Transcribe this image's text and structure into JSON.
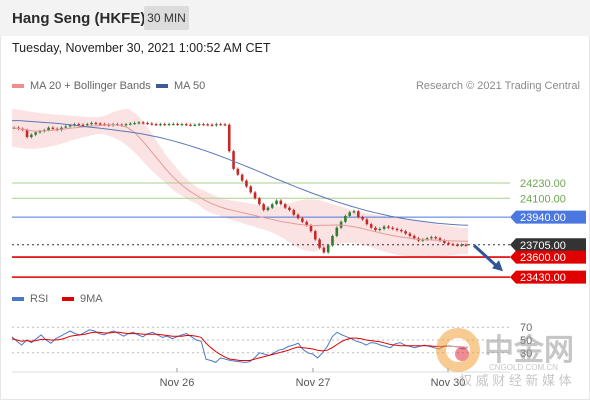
{
  "header": {
    "title": "Hang Seng (HKFE)",
    "timeframe": "30 MIN"
  },
  "datetime": "Tuesday, November 30, 2021 1:00:52 AM CET",
  "legend": {
    "items": [
      {
        "label": "MA 20 + Bollinger Bands",
        "color": "#f08c8c"
      },
      {
        "label": "MA 50",
        "color": "#3d5a99"
      }
    ],
    "credit": "Research © 2021 Trading Central"
  },
  "rsi_legend": {
    "items": [
      {
        "label": "RSI",
        "color": "#4a78c8"
      },
      {
        "label": "9MA",
        "color": "#e00000"
      }
    ]
  },
  "colors": {
    "bollinger_fill": "#fbe0e0",
    "ma50": "#5a78b8",
    "ma20": "#e69a9a",
    "resistance_green": "#a9d18e",
    "pivot_blue": "#4a78e0",
    "support_red": "#e00000",
    "current": "#333333",
    "candle_up": "#2e7d32",
    "candle_down": "#c62828",
    "arrow": "#2f5597"
  },
  "watermark": {
    "cn_name": "中金网",
    "cn_slogan": "权 威 财 经 新 媒 体",
    "domain": "CNGOLD.COM.CN"
  },
  "chart_data": [
    {
      "type": "candlestick",
      "x_labels": [
        "Nov 26",
        "Nov 27",
        "Nov 30"
      ],
      "ylim": [
        23380,
        24850
      ],
      "levels": [
        {
          "label": "24230.00",
          "value": 24230,
          "kind": "resistance"
        },
        {
          "label": "24100.00",
          "value": 24100,
          "kind": "resistance"
        },
        {
          "label": "23940.00",
          "value": 23940,
          "kind": "pivot"
        },
        {
          "label": "23705.00",
          "value": 23705,
          "kind": "current"
        },
        {
          "label": "23600.00",
          "value": 23600,
          "kind": "support"
        },
        {
          "label": "23430.00",
          "value": 23430,
          "kind": "support"
        }
      ],
      "close_series": [
        24700,
        24690,
        24680,
        24620,
        24640,
        24660,
        24670,
        24680,
        24700,
        24690,
        24680,
        24700,
        24710,
        24720,
        24730,
        24725,
        24720,
        24730,
        24740,
        24735,
        24730,
        24725,
        24720,
        24730,
        24725,
        24720,
        24730,
        24735,
        24740,
        24745,
        24740,
        24735,
        24730,
        24725,
        24730,
        24728,
        24730,
        24732,
        24728,
        24730,
        24725,
        24722,
        24725,
        24730,
        24728,
        24725,
        24720,
        24730,
        24728,
        24725,
        24500,
        24350,
        24300,
        24250,
        24200,
        24150,
        24100,
        24050,
        24000,
        24020,
        24050,
        24080,
        24050,
        24020,
        24000,
        23960,
        23930,
        23900,
        23870,
        23820,
        23750,
        23680,
        23640,
        23700,
        23780,
        23850,
        23900,
        23950,
        23980,
        23990,
        23940,
        23920,
        23880,
        23850,
        23830,
        23840,
        23860,
        23850,
        23840,
        23830,
        23820,
        23800,
        23780,
        23760,
        23740,
        23750,
        23760,
        23770,
        23760,
        23740,
        23720,
        23710,
        23705,
        23700,
        23705,
        23700
      ],
      "ma50": [
        24760,
        24760,
        24755,
        24750,
        24745,
        24740,
        24735,
        24728,
        24720,
        24712,
        24705,
        24698,
        24690,
        24682,
        24674,
        24665,
        24655,
        24645,
        24632,
        24618,
        24602,
        24585,
        24566,
        24547,
        24526,
        24504,
        24481,
        24457,
        24432,
        24406,
        24380,
        24353,
        24326,
        24298,
        24270,
        24243,
        24216,
        24190,
        24165,
        24140,
        24116,
        24093,
        24071,
        24050,
        24030,
        24011,
        23993,
        23977,
        23962,
        23948,
        23936,
        23924,
        23914,
        23904,
        23896,
        23888,
        23882,
        23877,
        23873,
        23870
      ],
      "ma20": [
        24700,
        24690,
        24680,
        24670,
        24672,
        24677,
        24683,
        24690,
        24698,
        24705,
        24712,
        24717,
        24722,
        24724,
        24720,
        24700,
        24650,
        24580,
        24500,
        24420,
        24340,
        24270,
        24210,
        24160,
        24120,
        24080,
        24050,
        24025,
        24005,
        23990,
        23975,
        23960,
        23945,
        23930,
        23915,
        23900,
        23890,
        23880,
        23872,
        23868,
        23870,
        23872,
        23873,
        23870,
        23860,
        23848,
        23832,
        23816,
        23800,
        23786,
        23774,
        23764,
        23756,
        23750,
        23746,
        23743,
        23740,
        23738,
        23736,
        23735
      ],
      "boll_upper": [
        24860,
        24852,
        24840,
        24830,
        24822,
        24815,
        24810,
        24805,
        24800,
        24795,
        24790,
        24788,
        24800,
        24830,
        24850,
        24860,
        24820,
        24750,
        24660,
        24560,
        24460,
        24380,
        24300,
        24240,
        24190,
        24160,
        24130,
        24100,
        24085,
        24075,
        24065,
        24055,
        24045,
        24035,
        24030,
        24035,
        24060,
        24080,
        24090,
        24090,
        24080,
        24060,
        24040,
        24020,
        24000,
        23985,
        23972,
        23960,
        23950,
        23940,
        23930,
        23920,
        23910,
        23900,
        23890,
        23880,
        23870,
        23860,
        23850,
        23845
      ],
      "boll_lower": [
        24540,
        24528,
        24520,
        24520,
        24528,
        24540,
        24556,
        24575,
        24596,
        24614,
        24630,
        24646,
        24644,
        24618,
        24590,
        24540,
        24480,
        24410,
        24340,
        24280,
        24220,
        24160,
        24120,
        24080,
        24050,
        24000,
        23970,
        23950,
        23925,
        23905,
        23885,
        23865,
        23845,
        23825,
        23800,
        23765,
        23720,
        23680,
        23654,
        23646,
        23660,
        23684,
        23706,
        23720,
        23720,
        23711,
        23692,
        23672,
        23650,
        23632,
        23618,
        23608,
        23602,
        23600,
        23602,
        23606,
        23610,
        23616,
        23622,
        23625
      ]
    },
    {
      "type": "line",
      "name": "RSI",
      "reference_levels": [
        70,
        50,
        30
      ],
      "ylim": [
        0,
        100
      ],
      "series": [
        {
          "name": "RSI",
          "color": "#4a78c8",
          "values": [
            55,
            48,
            42,
            50,
            46,
            52,
            58,
            50,
            45,
            52,
            56,
            60,
            64,
            60,
            58,
            62,
            66,
            64,
            60,
            58,
            62,
            64,
            60,
            56,
            60,
            62,
            58,
            55,
            60,
            62,
            58,
            54,
            56,
            52,
            55,
            58,
            60,
            55,
            50,
            48,
            20,
            18,
            15,
            22,
            20,
            18,
            17,
            16,
            15,
            16,
            22,
            30,
            28,
            26,
            30,
            34,
            36,
            40,
            42,
            45,
            35,
            30,
            28,
            22,
            30,
            40,
            55,
            62,
            58,
            55,
            52,
            48,
            46,
            42,
            46,
            45,
            42,
            40,
            38,
            44,
            46,
            42,
            40,
            38,
            40,
            42,
            40,
            38,
            36,
            40,
            42,
            40,
            38,
            36,
            38
          ]
        },
        {
          "name": "9MA",
          "color": "#e00000",
          "values": [
            52,
            50,
            48,
            49,
            48,
            49,
            51,
            51,
            50,
            50,
            51,
            53,
            56,
            57,
            58,
            59,
            61,
            62,
            62,
            61,
            61,
            62,
            62,
            61,
            60,
            60,
            60,
            59,
            59,
            59,
            59,
            58,
            57,
            56,
            56,
            56,
            57,
            57,
            56,
            54,
            45,
            38,
            32,
            27,
            23,
            20,
            19,
            18,
            18,
            18,
            20,
            22,
            24,
            26,
            28,
            30,
            32,
            34,
            37,
            39,
            38,
            37,
            36,
            34,
            33,
            34,
            38,
            43,
            48,
            51,
            53,
            53,
            52,
            50,
            49,
            48,
            47,
            45,
            43,
            42,
            41,
            41,
            41,
            41,
            41,
            41,
            41,
            40,
            40,
            40,
            40,
            40,
            40,
            39,
            39
          ]
        }
      ]
    }
  ]
}
